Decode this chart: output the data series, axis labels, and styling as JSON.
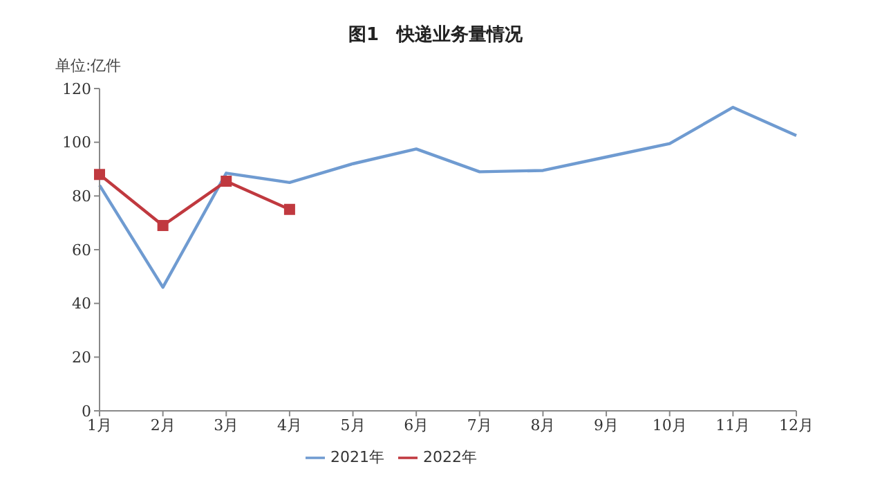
{
  "chart_data": {
    "type": "line",
    "title": "图1　快递业务量情况",
    "ylabel": "单位:亿件",
    "categories": [
      "1月",
      "2月",
      "3月",
      "4月",
      "5月",
      "6月",
      "7月",
      "8月",
      "9月",
      "10月",
      "11月",
      "12月"
    ],
    "series": [
      {
        "name": "2021年",
        "color": "#6f9bd1",
        "marker": "none",
        "values": [
          84,
          46,
          88.5,
          85,
          92,
          97.5,
          89,
          89.5,
          94.5,
          99.5,
          113,
          102.5
        ]
      },
      {
        "name": "2022年",
        "color": "#c0393f",
        "marker": "square",
        "values": [
          88,
          69,
          85.5,
          75,
          null,
          null,
          null,
          null,
          null,
          null,
          null,
          null
        ]
      }
    ],
    "ylim": [
      0,
      120
    ],
    "yticks": [
      0,
      20,
      40,
      60,
      80,
      100,
      120
    ],
    "grid": false,
    "legend": "bottom",
    "line_style": "solid"
  }
}
